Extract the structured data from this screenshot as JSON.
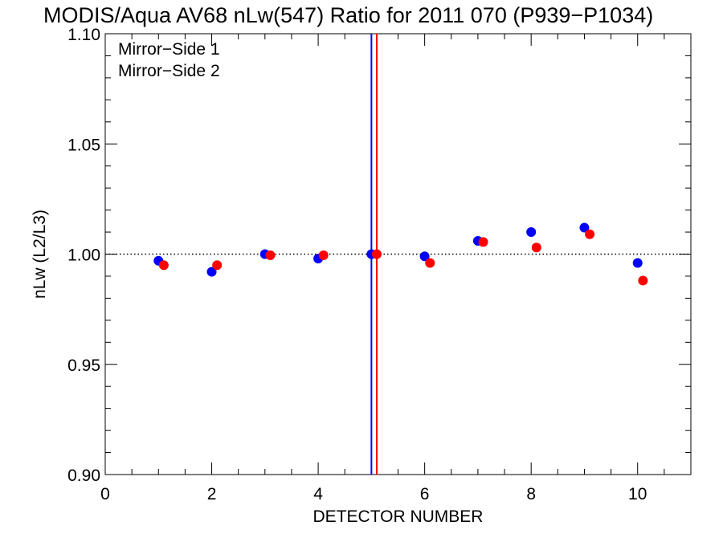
{
  "chart_data": {
    "type": "scatter",
    "title": "MODIS/Aqua AV68 nLw(547) Ratio for 2011 070 (P939−P1034)",
    "xlabel": "DETECTOR NUMBER",
    "ylabel": "nLw (L2/L3)",
    "xlim": [
      0,
      11
    ],
    "ylim": [
      0.9,
      1.1
    ],
    "x_ticks": [
      0,
      2,
      4,
      6,
      8,
      10
    ],
    "x_tick_labels": [
      "0",
      "2",
      "4",
      "6",
      "8",
      "10"
    ],
    "y_ticks": [
      0.9,
      0.95,
      1.0,
      1.05,
      1.1
    ],
    "y_tick_labels": [
      "0.90",
      "0.95",
      "1.00",
      "1.05",
      "1.10"
    ],
    "reference_line_y": 1.0,
    "legend_position": "top-left",
    "series": [
      {
        "name": "Mirror−Side 1",
        "color": "#0000ff",
        "x": [
          1,
          2,
          3,
          4,
          5,
          6,
          7,
          8,
          9,
          10
        ],
        "y": [
          0.997,
          0.992,
          1.0,
          0.998,
          1.0,
          0.999,
          1.006,
          1.01,
          1.012,
          0.996
        ],
        "vertical_line_x": 5.0
      },
      {
        "name": "Mirror−Side 2",
        "color": "#ff0000",
        "x": [
          1.1,
          2.1,
          3.1,
          4.1,
          5.1,
          6.1,
          7.1,
          8.1,
          9.1,
          10.1
        ],
        "y": [
          0.995,
          0.995,
          0.9995,
          0.9995,
          1.0,
          0.996,
          1.0055,
          1.003,
          1.009,
          0.988
        ],
        "vertical_line_x": 5.1
      }
    ]
  }
}
